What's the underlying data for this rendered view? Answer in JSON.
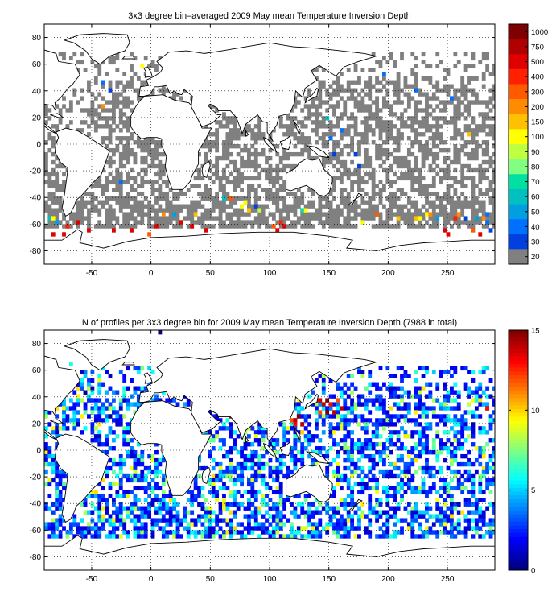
{
  "chart_data": [
    {
      "type": "heatmap",
      "title": "3x3 degree bin–averaged 2009 May mean Temperature Inversion Depth",
      "xlabel": "",
      "ylabel": "",
      "xlim": [
        -90,
        290
      ],
      "ylim": [
        -90,
        90
      ],
      "x_ticks": [
        -50,
        0,
        50,
        100,
        150,
        200,
        250
      ],
      "y_ticks": [
        80,
        60,
        40,
        20,
        0,
        -20,
        -40,
        -60,
        -80
      ],
      "grid": true,
      "colorbar_ticks": [
        "1000",
        "750",
        "500",
        "400",
        "300",
        "200",
        "150",
        "100",
        "90",
        "80",
        "70",
        "60",
        "50",
        "40",
        "30",
        "20"
      ],
      "colorbar_colors": [
        "#7f0000",
        "#b00000",
        "#e00000",
        "#ff2000",
        "#ff5a00",
        "#ff8c00",
        "#ffc000",
        "#ffff00",
        "#c0ff40",
        "#80ff80",
        "#00e0a0",
        "#00c0c0",
        "#00a0e0",
        "#0070ff",
        "#0040e0",
        "#808080"
      ],
      "bins": [
        [
          -87,
          -57,
          "#00c0c0"
        ],
        [
          -84,
          -57,
          "#ffff00"
        ],
        [
          -81,
          -60,
          "#00a0e0"
        ],
        [
          -84,
          -69,
          "#e00000"
        ],
        [
          -75,
          -69,
          "#e00000"
        ],
        [
          -72,
          -63,
          "#ff2000"
        ],
        [
          -63,
          -60,
          "#e00000"
        ],
        [
          -54,
          -66,
          "#e00000"
        ],
        [
          -48,
          63,
          "#e00000"
        ],
        [
          -45,
          60,
          "#e00000"
        ],
        [
          -42,
          45,
          "#0070ff"
        ],
        [
          -42,
          27,
          "#ff8c00"
        ],
        [
          -33,
          -66,
          "#e00000"
        ],
        [
          -18,
          -66,
          "#e00000"
        ],
        [
          -9,
          57,
          "#ffff00"
        ],
        [
          -3,
          -69,
          "#ff5a00"
        ],
        [
          3,
          -63,
          "#e00000"
        ],
        [
          9,
          -54,
          "#ff8c00"
        ],
        [
          18,
          -54,
          "#00a0e0"
        ],
        [
          24,
          -60,
          "#e00000"
        ],
        [
          33,
          -63,
          "#e00000"
        ],
        [
          36,
          -54,
          "#ffc000"
        ],
        [
          45,
          -66,
          "#e00000"
        ],
        [
          60,
          -42,
          "#00c0c0"
        ],
        [
          66,
          -42,
          "#ff5a00"
        ],
        [
          75,
          -48,
          "#ffff00"
        ],
        [
          78,
          -45,
          "#ffff00"
        ],
        [
          81,
          -51,
          "#ffc000"
        ],
        [
          87,
          -48,
          "#0040e0"
        ],
        [
          90,
          -51,
          "#c0ff40"
        ],
        [
          102,
          -63,
          "#ff5a00"
        ],
        [
          105,
          -66,
          "#e00000"
        ],
        [
          108,
          -60,
          "#ff2000"
        ],
        [
          111,
          -63,
          "#e00000"
        ],
        [
          126,
          -51,
          "#00e0a0"
        ],
        [
          129,
          -51,
          "#ffff00"
        ],
        [
          147,
          18,
          "#00c0c0"
        ],
        [
          150,
          3,
          "#0070ff"
        ],
        [
          153,
          -9,
          "#0040e0"
        ],
        [
          159,
          9,
          "#0070ff"
        ],
        [
          171,
          -9,
          "#0040e0"
        ],
        [
          174,
          -18,
          "#0040e0"
        ],
        [
          177,
          -60,
          "#ffff00"
        ],
        [
          189,
          -54,
          "#ff5a00"
        ],
        [
          207,
          -57,
          "#ffc000"
        ],
        [
          222,
          -57,
          "#ffc000"
        ],
        [
          225,
          -57,
          "#ffff00"
        ],
        [
          231,
          -54,
          "#ffff00"
        ],
        [
          234,
          -54,
          "#ff8c00"
        ],
        [
          240,
          -57,
          "#00a0e0"
        ],
        [
          255,
          -57,
          "#ff2000"
        ],
        [
          258,
          -54,
          "#ff8c00"
        ],
        [
          264,
          -57,
          "#0040e0"
        ],
        [
          273,
          -57,
          "#00a0e0"
        ],
        [
          279,
          -57,
          "#ff8c00"
        ],
        [
          282,
          -54,
          "#0070ff"
        ],
        [
          246,
          -66,
          "#e00000"
        ],
        [
          249,
          -69,
          "#e00000"
        ],
        [
          270,
          -66,
          "#ff5a00"
        ],
        [
          276,
          -69,
          "#e00000"
        ],
        [
          282,
          -60,
          "#0070ff"
        ],
        [
          285,
          -66,
          "#0040e0"
        ],
        [
          195,
          51,
          "#0070ff"
        ],
        [
          222,
          39,
          "#0070ff"
        ],
        [
          252,
          33,
          "#0070ff"
        ],
        [
          267,
          6,
          "#ffc000"
        ],
        [
          -36,
          39,
          "#0040e0"
        ],
        [
          -27,
          -30,
          "#0070ff"
        ]
      ]
    },
    {
      "type": "heatmap",
      "title": "N of profiles per 3x3 degree bin for 2009 May mean Temperature Inversion Depth  (7988 in total)",
      "xlabel": "",
      "ylabel": "",
      "xlim": [
        -90,
        290
      ],
      "ylim": [
        -90,
        90
      ],
      "x_ticks": [
        -50,
        0,
        50,
        100,
        150,
        200,
        250
      ],
      "y_ticks": [
        80,
        60,
        40,
        20,
        0,
        -20,
        -40,
        -60,
        -80
      ],
      "grid": true,
      "colorbar_range": [
        0,
        15
      ],
      "colorbar_ticks": [
        15,
        10,
        5,
        0
      ],
      "bins": [
        [
          6,
          87,
          0
        ],
        [
          -69,
          63,
          6
        ],
        [
          -60,
          57,
          1
        ],
        [
          -63,
          48,
          2
        ],
        [
          -57,
          42,
          0
        ],
        [
          -42,
          33,
          3
        ],
        [
          -36,
          24,
          0
        ],
        [
          -48,
          9,
          1
        ],
        [
          -54,
          -3,
          4
        ],
        [
          -33,
          -18,
          7
        ],
        [
          -87,
          -24,
          9
        ],
        [
          -81,
          -33,
          7
        ],
        [
          -78,
          -42,
          2
        ],
        [
          -66,
          -57,
          3
        ],
        [
          -45,
          -48,
          6
        ],
        [
          -21,
          -36,
          9
        ],
        [
          -9,
          -6,
          4
        ],
        [
          -3,
          -30,
          3
        ],
        [
          12,
          -42,
          5
        ],
        [
          30,
          -57,
          7
        ],
        [
          42,
          -45,
          1
        ],
        [
          57,
          -21,
          5
        ],
        [
          63,
          30,
          15
        ],
        [
          66,
          27,
          14
        ],
        [
          69,
          27,
          14
        ],
        [
          66,
          24,
          14
        ],
        [
          69,
          24,
          13
        ],
        [
          75,
          12,
          6
        ],
        [
          84,
          -9,
          1
        ],
        [
          93,
          -24,
          5
        ],
        [
          105,
          -45,
          2
        ],
        [
          111,
          18,
          7
        ],
        [
          114,
          15,
          9
        ],
        [
          117,
          21,
          12
        ],
        [
          120,
          21,
          14
        ],
        [
          123,
          24,
          15
        ],
        [
          120,
          18,
          13
        ],
        [
          126,
          18,
          14
        ],
        [
          126,
          12,
          10
        ],
        [
          123,
          6,
          4
        ],
        [
          138,
          36,
          13
        ],
        [
          141,
          36,
          14
        ],
        [
          144,
          33,
          14
        ],
        [
          147,
          36,
          15
        ],
        [
          150,
          33,
          13
        ],
        [
          153,
          27,
          14
        ],
        [
          147,
          27,
          15
        ],
        [
          156,
          36,
          12
        ],
        [
          159,
          30,
          14
        ],
        [
          141,
          27,
          12
        ],
        [
          168,
          30,
          5
        ],
        [
          174,
          18,
          8
        ],
        [
          183,
          6,
          2
        ],
        [
          192,
          21,
          3
        ],
        [
          201,
          -12,
          5
        ],
        [
          213,
          -27,
          2
        ],
        [
          222,
          3,
          7
        ],
        [
          231,
          -15,
          1
        ],
        [
          240,
          -33,
          5
        ],
        [
          246,
          12,
          6
        ],
        [
          252,
          -6,
          3
        ],
        [
          261,
          -30,
          8
        ],
        [
          270,
          18,
          1
        ],
        [
          276,
          -3,
          4
        ],
        [
          282,
          30,
          13
        ],
        [
          285,
          21,
          6
        ],
        [
          279,
          -39,
          2
        ],
        [
          264,
          -51,
          6
        ],
        [
          231,
          -54,
          3
        ],
        [
          195,
          -48,
          1
        ],
        [
          162,
          -60,
          4
        ],
        [
          141,
          -54,
          2
        ],
        [
          120,
          -63,
          6
        ],
        [
          78,
          -51,
          3
        ],
        [
          24,
          -66,
          2
        ]
      ]
    }
  ]
}
